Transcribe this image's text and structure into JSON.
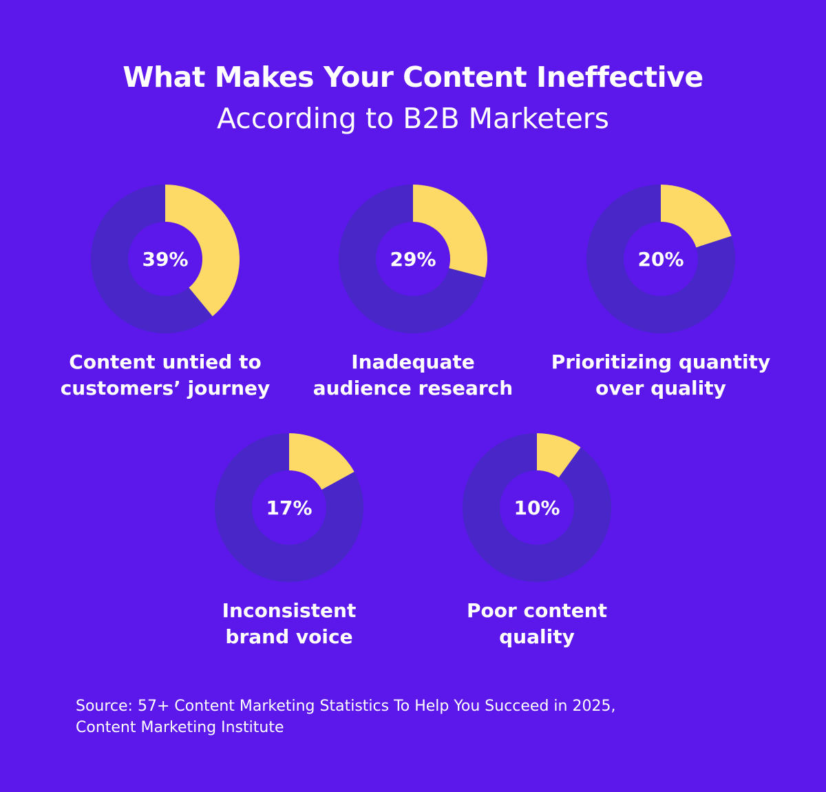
{
  "title": "What Makes Your Content Ineffective",
  "subtitle": "According to B2B Marketers",
  "source_lines": [
    "Source: 57+ Content Marketing Statistics To Help You Succeed in 2025,",
    "Content Marketing Institute"
  ],
  "colors": {
    "background": "#5c17ea",
    "track": "#4826c8",
    "highlight": "#fdd965"
  },
  "chart_data": {
    "type": "pie",
    "variant": "donut",
    "title": "What Makes Your Content Ineffective",
    "subtitle": "According to B2B Marketers",
    "unit": "%",
    "items": [
      {
        "value": 39,
        "display": "39%",
        "label_lines": [
          "Content untied to",
          "customers’ journey"
        ]
      },
      {
        "value": 29,
        "display": "29%",
        "label_lines": [
          "Inadequate",
          "audience research"
        ]
      },
      {
        "value": 20,
        "display": "20%",
        "label_lines": [
          "Prioritizing quantity",
          "over quality"
        ]
      },
      {
        "value": 17,
        "display": "17%",
        "label_lines": [
          "Inconsistent",
          "brand voice"
        ]
      },
      {
        "value": 10,
        "display": "10%",
        "label_lines": [
          "Poor content",
          "quality"
        ]
      }
    ]
  }
}
